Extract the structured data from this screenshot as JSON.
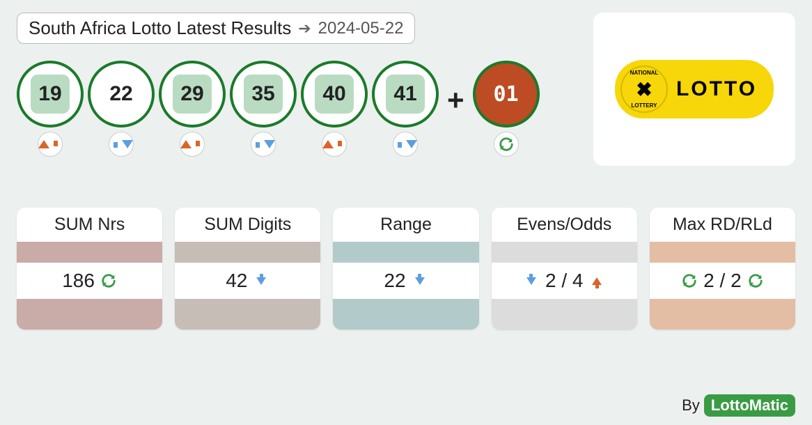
{
  "header": {
    "title": "South Africa Lotto Latest Results",
    "date": "2024-05-22"
  },
  "balls": [
    {
      "num": "19",
      "highlighted": true,
      "trend": "up"
    },
    {
      "num": "22",
      "highlighted": false,
      "trend": "down"
    },
    {
      "num": "29",
      "highlighted": true,
      "trend": "up"
    },
    {
      "num": "35",
      "highlighted": true,
      "trend": "down"
    },
    {
      "num": "40",
      "highlighted": true,
      "trend": "up"
    },
    {
      "num": "41",
      "highlighted": true,
      "trend": "down"
    }
  ],
  "bonus": {
    "num": "01",
    "trend": "refresh"
  },
  "colors": {
    "page_bg": "#ecf0ef",
    "ball_border": "#1b7a2a",
    "ball_highlight_bg": "#b9dbc2",
    "bonus_bg": "#bd4b23",
    "arrow_up": "#d9652b",
    "arrow_down": "#5c9fe0",
    "refresh": "#3a9b45",
    "logo_bg": "#f7d60a",
    "byline_badge_bg": "#3a9b45"
  },
  "logo": {
    "ring_top": "NATIONAL",
    "ring_bottom": "LOTTERY",
    "wordmark": "LOTTO"
  },
  "stats": [
    {
      "label": "SUM Nrs",
      "value": "186",
      "icons": [
        "refresh"
      ],
      "layout": "value-first",
      "band_top": "#c9aba8",
      "band_bottom": "#c9aba8"
    },
    {
      "label": "SUM Digits",
      "value": "42",
      "icons": [
        "down"
      ],
      "layout": "value-first",
      "band_top": "#c6bdb7",
      "band_bottom": "#c6bdb7"
    },
    {
      "label": "Range",
      "value": "22",
      "icons": [
        "down"
      ],
      "layout": "value-first",
      "band_top": "#b3cacb",
      "band_bottom": "#b3cacb"
    },
    {
      "label": "Evens/Odds",
      "value": "2 / 4",
      "icons": [
        "down",
        "up"
      ],
      "layout": "icon-value-icon",
      "band_top": "#dcdcdc",
      "band_bottom": "#dcdcdc"
    },
    {
      "label": "Max RD/RLd",
      "value": "2 / 2",
      "icons": [
        "refresh",
        "refresh"
      ],
      "layout": "icon-value-icon",
      "band_top": "#e3bda4",
      "band_bottom": "#e3bda4"
    }
  ],
  "byline": {
    "prefix": "By",
    "brand": "LottoMatic"
  }
}
